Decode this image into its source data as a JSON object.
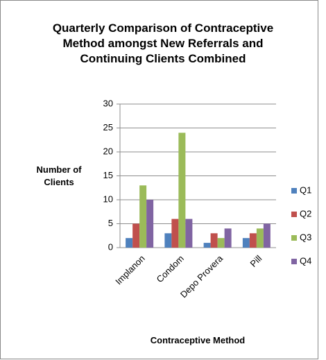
{
  "chart_data": {
    "type": "bar",
    "title": "Quarterly Comparison of Contraceptive Method amongst New Referrals and Continuing Clients Combined",
    "x_label": "Contraceptive Method",
    "y_label": "Number of Clients",
    "categories": [
      "Implanon",
      "Condom",
      "Depo Provera",
      "Pill"
    ],
    "series": [
      {
        "name": "Q1",
        "color": "#4f81bd",
        "values": [
          2,
          3,
          1,
          2
        ]
      },
      {
        "name": "Q2",
        "color": "#c0504d",
        "values": [
          5,
          6,
          3,
          3
        ]
      },
      {
        "name": "Q3",
        "color": "#9bbb59",
        "values": [
          13,
          24,
          2,
          4
        ]
      },
      {
        "name": "Q4",
        "color": "#8064a2",
        "values": [
          10,
          6,
          4,
          5
        ]
      }
    ],
    "ylim": [
      0,
      30
    ],
    "yticks": [
      0,
      5,
      10,
      15,
      20,
      25,
      30
    ],
    "grid": true,
    "legend": "right"
  }
}
